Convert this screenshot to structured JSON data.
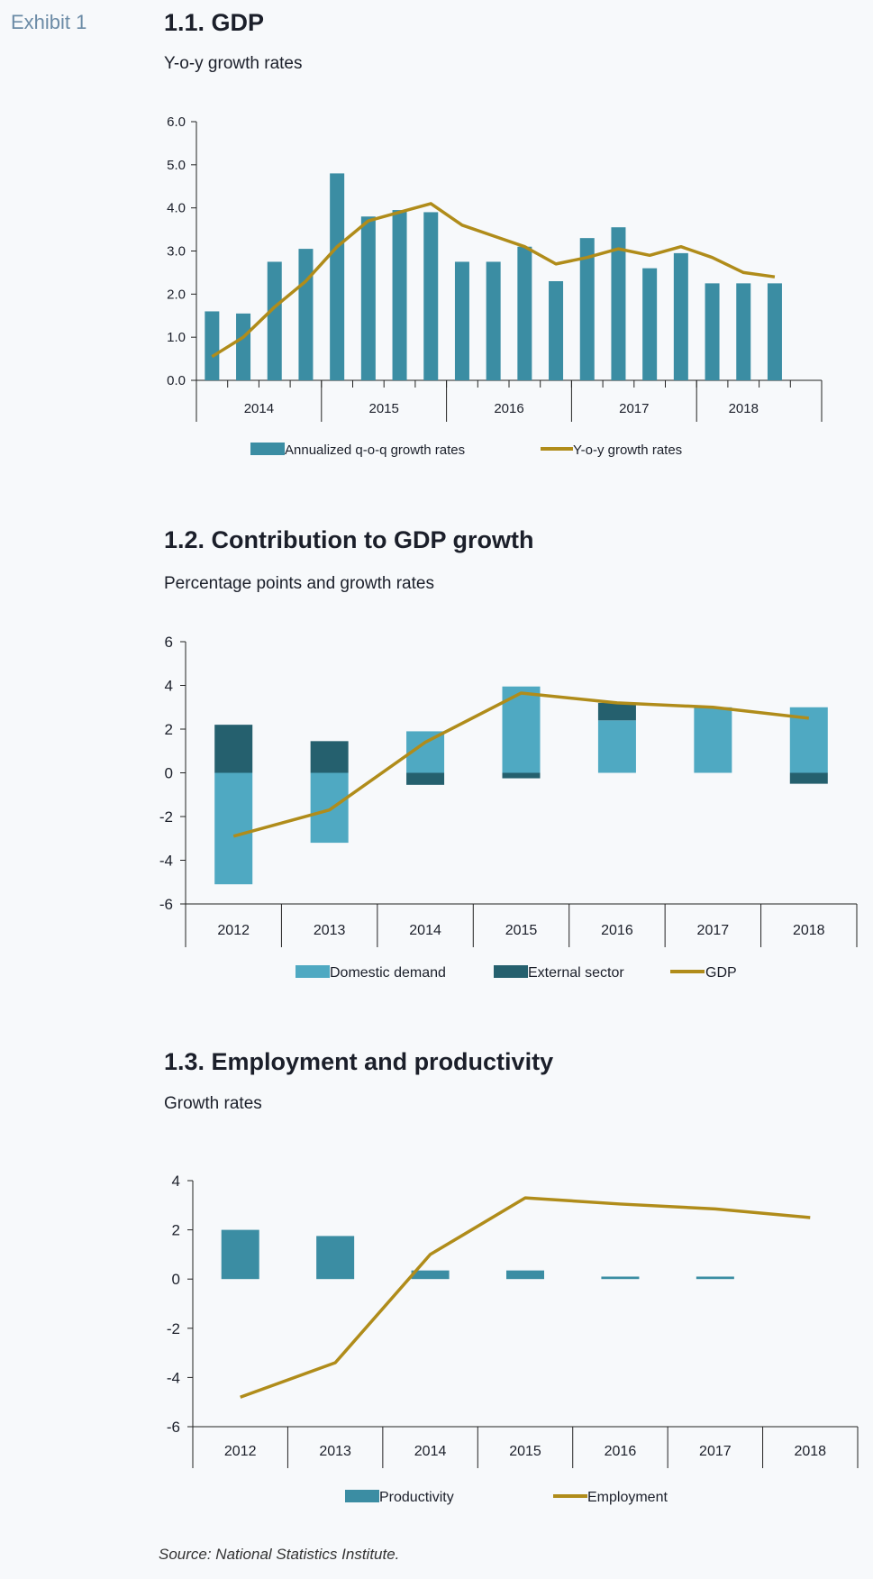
{
  "exhibit_label": "Exhibit 1",
  "source": "Source: National Statistics Institute.",
  "chart_data": [
    {
      "id": "gdp",
      "type": "bar+line",
      "title": "1.1. GDP",
      "subtitle": "Y-o-y growth rates",
      "ylim": [
        0,
        6
      ],
      "yticks": [
        0,
        1,
        2,
        3,
        4,
        5,
        6
      ],
      "ytick_decimals": 1,
      "year_groups": [
        {
          "label": "2014",
          "count": 4
        },
        {
          "label": "2015",
          "count": 4
        },
        {
          "label": "2016",
          "count": 4
        },
        {
          "label": "2017",
          "count": 4
        },
        {
          "label": "2018",
          "count": 3
        }
      ],
      "series": [
        {
          "name": "Annualized q-o-q growth rates",
          "kind": "bar",
          "color": "#3b8da3",
          "values": [
            1.6,
            1.55,
            2.75,
            3.05,
            4.8,
            3.8,
            3.95,
            3.9,
            2.75,
            2.75,
            3.1,
            2.3,
            3.3,
            3.55,
            2.6,
            2.95,
            2.25,
            2.25,
            2.25
          ]
        },
        {
          "name": "Y-o-y growth rates",
          "kind": "line",
          "color": "#b08c1a",
          "values": [
            0.55,
            1.0,
            1.7,
            2.3,
            3.1,
            3.7,
            3.9,
            4.1,
            3.6,
            3.35,
            3.1,
            2.7,
            2.85,
            3.05,
            2.9,
            3.1,
            2.85,
            2.5,
            2.4
          ]
        }
      ]
    },
    {
      "id": "contrib",
      "type": "stacked-bar+line",
      "title": "1.2. Contribution to GDP growth",
      "subtitle": "Percentage points and growth rates",
      "ylim": [
        -6,
        6
      ],
      "yticks": [
        -6,
        -4,
        -2,
        0,
        2,
        4,
        6
      ],
      "categories": [
        "2012",
        "2013",
        "2014",
        "2015",
        "2016",
        "2017",
        "2018"
      ],
      "series": [
        {
          "name": "Domestic demand",
          "kind": "bar",
          "color": "#4fa9c2",
          "values": [
            -5.1,
            -3.2,
            1.9,
            3.95,
            2.4,
            3.0,
            3.0
          ]
        },
        {
          "name": "External sector",
          "kind": "bar",
          "color": "#25606e",
          "values": [
            2.2,
            1.45,
            -0.55,
            -0.25,
            0.8,
            0.0,
            -0.5
          ]
        },
        {
          "name": "GDP",
          "kind": "line",
          "color": "#b08c1a",
          "values": [
            -2.9,
            -1.7,
            1.4,
            3.65,
            3.2,
            3.0,
            2.5
          ]
        }
      ]
    },
    {
      "id": "employment",
      "type": "bar+line",
      "title": "1.3. Employment and productivity",
      "subtitle": "Growth rates",
      "ylim": [
        -6,
        4
      ],
      "yticks": [
        -6,
        -4,
        -2,
        0,
        2,
        4
      ],
      "categories": [
        "2012",
        "2013",
        "2014",
        "2015",
        "2016",
        "2017",
        "2018"
      ],
      "series": [
        {
          "name": "Productivity",
          "kind": "bar",
          "color": "#3b8da3",
          "values": [
            2.0,
            1.75,
            0.35,
            0.35,
            0.1,
            0.1,
            0.0
          ]
        },
        {
          "name": "Employment",
          "kind": "line",
          "color": "#b08c1a",
          "values": [
            -4.8,
            -3.4,
            1.0,
            3.3,
            3.05,
            2.85,
            2.5
          ]
        }
      ]
    }
  ]
}
